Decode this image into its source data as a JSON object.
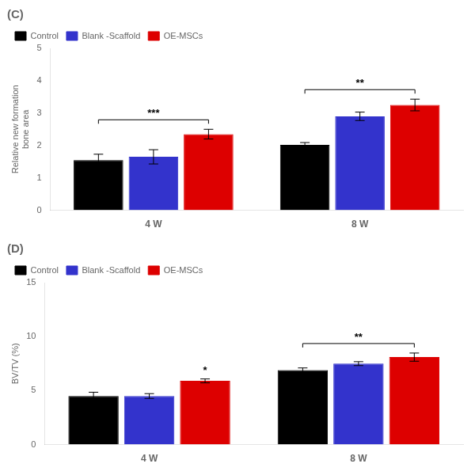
{
  "chart_data": [
    {
      "type": "bar",
      "title": "(C)",
      "ylabel": "Relative new formation\nbone area",
      "categories": [
        "4 W",
        "8 W"
      ],
      "series": [
        {
          "name": "Control",
          "color": "#000000",
          "values": [
            1.55,
            2.02
          ],
          "errors": [
            0.18,
            0.07
          ]
        },
        {
          "name": "Blank -Scaffold",
          "color": "#3333cc",
          "values": [
            1.65,
            2.9
          ],
          "errors": [
            0.22,
            0.13
          ]
        },
        {
          "name": "OE-MSCs",
          "color": "#dd0000",
          "values": [
            2.35,
            3.25
          ],
          "errors": [
            0.15,
            0.18
          ]
        }
      ],
      "ylim": [
        0,
        5
      ],
      "yticks": [
        0,
        1,
        2,
        3,
        4,
        5
      ],
      "annotations": [
        {
          "text": "***",
          "category": "4 W"
        },
        {
          "text": "**",
          "category": "8 W"
        }
      ],
      "legend": "upper left",
      "grid": false
    },
    {
      "type": "bar",
      "title": "(D)",
      "ylabel": "BV/TV (%)",
      "categories": [
        "4 W",
        "8 W"
      ],
      "series": [
        {
          "name": "Control",
          "color": "#000000",
          "values": [
            4.5,
            6.9
          ],
          "errors": [
            0.35,
            0.2
          ]
        },
        {
          "name": "Blank -Scaffold",
          "color": "#3333cc",
          "values": [
            4.5,
            7.5
          ],
          "errors": [
            0.22,
            0.18
          ]
        },
        {
          "name": "OE-MSCs",
          "color": "#dd0000",
          "values": [
            5.9,
            8.1
          ],
          "errors": [
            0.18,
            0.38
          ]
        }
      ],
      "ylim": [
        0,
        15
      ],
      "yticks": [
        0,
        5,
        10,
        15
      ],
      "annotations": [
        {
          "text": "*",
          "category": "4 W",
          "series": "OE-MSCs"
        },
        {
          "text": "**",
          "category": "8 W"
        }
      ],
      "legend": "upper left",
      "grid": false
    }
  ]
}
